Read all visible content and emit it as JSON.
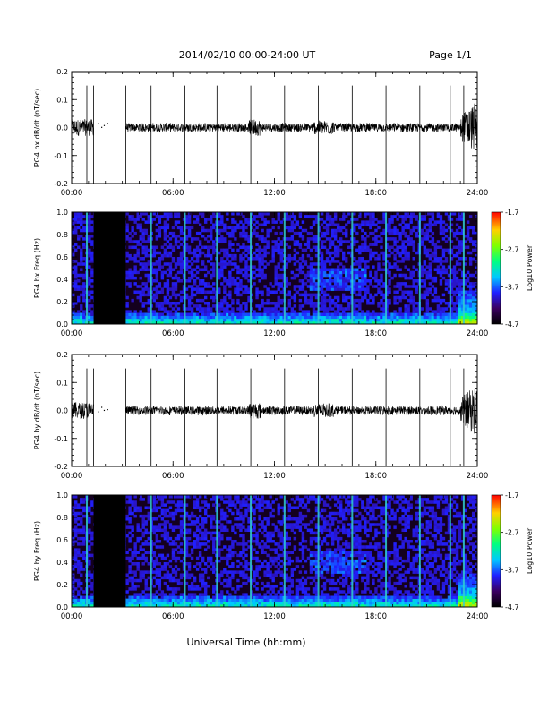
{
  "header": {
    "title": "2014/02/10   00:00-24:00 UT",
    "page": "Page 1/1"
  },
  "footer": {
    "xlabel": "Universal Time (hh:mm)"
  },
  "chart_data": [
    {
      "type": "line",
      "ylabel": "PG4 bx dB/dt (nT/sec)",
      "x_ticks": [
        "00:00",
        "06:00",
        "12:00",
        "18:00",
        "24:00"
      ],
      "xlim_hours": [
        0,
        24
      ],
      "ylim": [
        -0.2,
        0.2
      ],
      "y_ticks": [
        "-0.2",
        "-0.1",
        "0.0",
        "0.1",
        "0.2"
      ],
      "data_gap_hours": [
        1.3,
        3.2
      ],
      "spikes_hours": [
        0.9,
        1.3,
        3.2,
        4.7,
        6.7,
        8.6,
        10.6,
        12.6,
        14.6,
        16.6,
        18.6,
        20.6,
        22.4,
        23.2
      ],
      "burst_hours": [
        23.0,
        24.0
      ]
    },
    {
      "type": "heatmap",
      "ylabel": "PG4 bx Freq (Hz)",
      "x_ticks": [
        "00:00",
        "06:00",
        "12:00",
        "18:00",
        "24:00"
      ],
      "xlim_hours": [
        0,
        24
      ],
      "ylim": [
        0.0,
        1.0
      ],
      "y_ticks": [
        "0.0",
        "0.2",
        "0.4",
        "0.6",
        "0.8",
        "1.0"
      ],
      "colorbar": {
        "label": "Log10 Power",
        "ticks": [
          "-1.7",
          "-2.7",
          "-3.7",
          "-4.7"
        ],
        "range": [
          -4.7,
          -1.7
        ]
      }
    },
    {
      "type": "line",
      "ylabel": "PG4 by dB/dt (nT/sec)",
      "x_ticks": [
        "00:00",
        "06:00",
        "12:00",
        "18:00",
        "24:00"
      ],
      "xlim_hours": [
        0,
        24
      ],
      "ylim": [
        -0.2,
        0.2
      ],
      "y_ticks": [
        "-0.2",
        "-0.1",
        "0.0",
        "0.1",
        "0.2"
      ],
      "data_gap_hours": [
        1.3,
        3.2
      ],
      "spikes_hours": [
        0.9,
        1.3,
        3.2,
        4.7,
        6.7,
        8.6,
        10.6,
        12.6,
        14.6,
        16.6,
        18.6,
        20.6,
        22.4,
        23.2
      ],
      "burst_hours": [
        23.0,
        24.0
      ]
    },
    {
      "type": "heatmap",
      "ylabel": "PG4 by Freq (Hz)",
      "x_ticks": [
        "00:00",
        "06:00",
        "12:00",
        "18:00",
        "24:00"
      ],
      "xlim_hours": [
        0,
        24
      ],
      "ylim": [
        0.0,
        1.0
      ],
      "y_ticks": [
        "0.0",
        "0.2",
        "0.4",
        "0.6",
        "0.8",
        "1.0"
      ],
      "colorbar": {
        "label": "Log10 Power",
        "ticks": [
          "-1.7",
          "-2.7",
          "-3.7",
          "-4.7"
        ],
        "range": [
          -4.7,
          -1.7
        ]
      }
    }
  ]
}
